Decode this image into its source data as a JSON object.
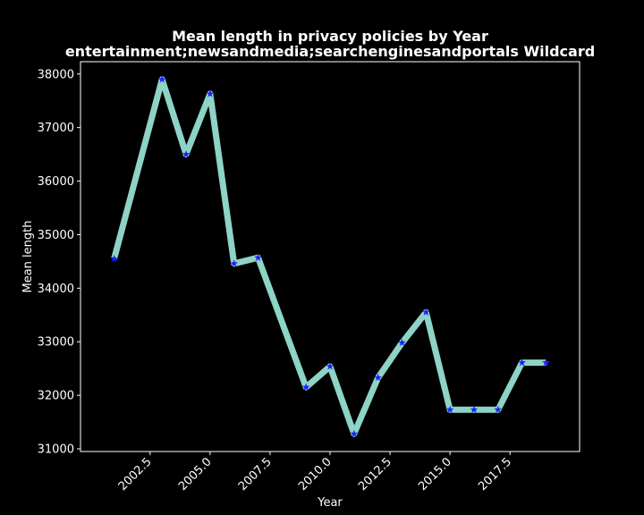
{
  "chart_data": {
    "type": "line",
    "title_line1": "Mean length in privacy policies by Year",
    "title_line2": "entertainment;newsandmedia;searchenginesandportals Wildcard",
    "xlabel": "Year",
    "ylabel": "Mean length",
    "xlim": [
      1999.6,
      2020.4
    ],
    "ylim": [
      30950,
      38230
    ],
    "x_ticks": [
      2002.5,
      2005.0,
      2007.5,
      2010.0,
      2012.5,
      2015.0,
      2017.5
    ],
    "x_tick_labels": [
      "2002.5",
      "2005.0",
      "2007.5",
      "2010.0",
      "2012.5",
      "2015.0",
      "2017.5"
    ],
    "y_ticks": [
      31000,
      32000,
      33000,
      34000,
      35000,
      36000,
      37000,
      38000
    ],
    "y_tick_labels": [
      "31000",
      "32000",
      "33000",
      "34000",
      "35000",
      "36000",
      "37000",
      "38000"
    ],
    "grid": false,
    "series": [
      {
        "x": [
          2001,
          2003,
          2004,
          2005,
          2006,
          2007,
          2009,
          2010,
          2011,
          2012,
          2013,
          2014,
          2015,
          2016,
          2017,
          2018,
          2019
        ],
        "values": [
          34550,
          37900,
          36500,
          37630,
          34460,
          34570,
          32150,
          32540,
          31280,
          32330,
          32980,
          33550,
          31730,
          31730,
          31730,
          32610,
          32610
        ]
      }
    ],
    "colors": {
      "background": "#000000",
      "line": "#8dd3c7",
      "marker": "#1f1fff",
      "axes": "#ffffff",
      "text": "#ffffff"
    }
  }
}
